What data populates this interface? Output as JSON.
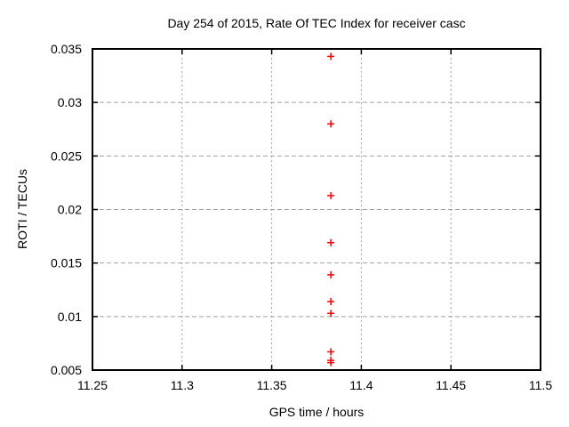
{
  "window": {
    "background": "#ffffff"
  },
  "chart_data": {
    "type": "scatter",
    "title": "Day 254 of 2015, Rate Of TEC Index for receiver casc",
    "xlabel": "GPS time / hours",
    "ylabel": "ROTI / TECUs",
    "xlim": [
      11.25,
      11.5
    ],
    "ylim": [
      0.005,
      0.035
    ],
    "x_ticks": [
      11.25,
      11.3,
      11.35,
      11.4,
      11.45,
      11.5
    ],
    "x_tick_labels": [
      "11.25",
      "11.3",
      "11.35",
      "11.4",
      "11.45",
      "11.5"
    ],
    "y_ticks": [
      0.005,
      0.01,
      0.015,
      0.02,
      0.025,
      0.03,
      0.035
    ],
    "y_tick_labels": [
      "0.005",
      "0.01",
      "0.015",
      "0.02",
      "0.025",
      "0.03",
      "0.035"
    ],
    "grid": true,
    "legend": "none",
    "marker": "plus",
    "series": [
      {
        "name": "ROTI",
        "color": "#ff0000",
        "points": [
          [
            11.383,
            0.0343
          ],
          [
            11.383,
            0.028
          ],
          [
            11.383,
            0.0213
          ],
          [
            11.383,
            0.0169
          ],
          [
            11.383,
            0.0139
          ],
          [
            11.383,
            0.0114
          ],
          [
            11.383,
            0.0103
          ],
          [
            11.383,
            0.0067
          ],
          [
            11.383,
            0.0059
          ],
          [
            11.383,
            0.0057
          ]
        ]
      }
    ],
    "colors": {
      "axis": "#000000",
      "grid": "#a0a0a0",
      "text": "#000000",
      "point": "#ff0000",
      "background": "#ffffff"
    }
  }
}
